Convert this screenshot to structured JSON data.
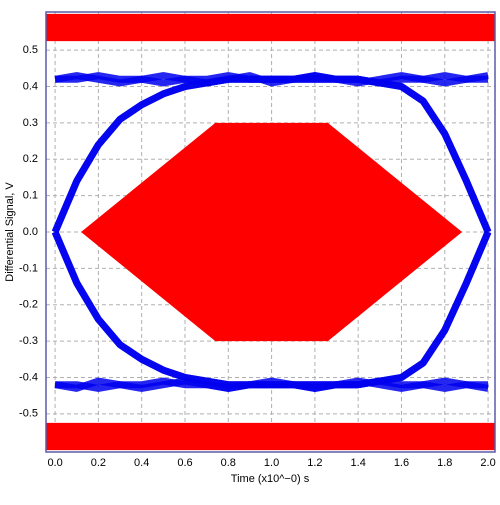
{
  "chart_data": {
    "type": "eye",
    "xlabel": "Time (x10^−0) s",
    "ylabel": "Differential Signal, V",
    "xlim": [
      -0.042,
      2.032
    ],
    "ylim": [
      -0.605,
      0.605
    ],
    "xticks": [
      {
        "value": 0,
        "label": "0.0"
      },
      0.2,
      0.4,
      0.6,
      0.8,
      {
        "value": 1,
        "label": "1.0"
      },
      1.2,
      1.4,
      1.6,
      1.8,
      {
        "value": 2,
        "label": "2.0"
      }
    ],
    "yticks": [
      0.5,
      0.4,
      0.3,
      0.2,
      0.1,
      {
        "value": 0,
        "label": "0.0"
      },
      -0.1,
      -0.2,
      -0.3,
      -0.4,
      -0.5
    ],
    "grid": true,
    "trace_color": "#0000ee",
    "mask_color": "#ff0000",
    "masks": [
      {
        "x": [
          -0.042,
          2.032,
          2.032,
          -0.042
        ],
        "y": [
          0.6,
          0.6,
          0.525,
          0.525
        ]
      },
      {
        "x": [
          0.12,
          0.74,
          1.26,
          1.88,
          1.26,
          0.74
        ],
        "y": [
          0,
          0.3,
          0.3,
          0,
          -0.3,
          -0.3
        ]
      },
      {
        "x": [
          -0.042,
          2.032,
          2.032,
          -0.042
        ],
        "y": [
          -0.525,
          -0.525,
          -0.6,
          -0.6
        ]
      }
    ],
    "x": [
      0,
      0.1,
      0.2,
      0.3,
      0.4,
      0.5,
      0.6,
      0.7,
      0.8,
      0.9,
      1.0,
      1.1,
      1.2,
      1.3,
      1.4,
      1.5,
      1.6,
      1.7,
      1.8,
      1.9,
      2.0
    ],
    "series": [
      {
        "values": [
          0.42,
          0.43,
          0.42,
          0.41,
          0.42,
          0.43,
          0.42,
          0.41,
          0.42,
          0.43,
          0.41,
          0.42,
          0.43,
          0.42,
          0.41,
          0.42,
          0.43,
          0.42,
          0.41,
          0.42,
          0.43
        ]
      },
      {
        "values": [
          -0.42,
          -0.43,
          -0.41,
          -0.42,
          -0.43,
          -0.42,
          -0.41,
          -0.42,
          -0.43,
          -0.42,
          -0.41,
          -0.42,
          -0.43,
          -0.42,
          -0.41,
          -0.42,
          -0.43,
          -0.42,
          -0.41,
          -0.42,
          -0.43
        ]
      },
      {
        "values": [
          0.0,
          0.14,
          0.24,
          0.31,
          0.35,
          0.38,
          0.4,
          0.41,
          0.42,
          0.42,
          0.42,
          0.42,
          0.43,
          0.42,
          0.42,
          0.41,
          0.42,
          0.42,
          0.43,
          0.42,
          0.42
        ]
      },
      {
        "values": [
          0.0,
          0.14,
          0.24,
          0.31,
          0.35,
          0.38,
          0.4,
          0.41,
          0.42,
          0.42,
          0.42,
          0.42,
          0.42,
          0.42,
          0.42,
          0.41,
          0.4,
          0.36,
          0.27,
          0.14,
          0.0
        ]
      },
      {
        "values": [
          0.42,
          0.42,
          0.43,
          0.42,
          0.42,
          0.41,
          0.42,
          0.42,
          0.43,
          0.42,
          0.42,
          0.42,
          0.42,
          0.42,
          0.42,
          0.41,
          0.4,
          0.36,
          0.27,
          0.14,
          0.0
        ]
      },
      {
        "values": [
          0.0,
          -0.14,
          -0.24,
          -0.31,
          -0.35,
          -0.38,
          -0.4,
          -0.41,
          -0.42,
          -0.42,
          -0.42,
          -0.42,
          -0.43,
          -0.42,
          -0.42,
          -0.41,
          -0.42,
          -0.42,
          -0.43,
          -0.42,
          -0.42
        ]
      },
      {
        "values": [
          0.0,
          -0.14,
          -0.24,
          -0.31,
          -0.35,
          -0.38,
          -0.4,
          -0.41,
          -0.42,
          -0.42,
          -0.42,
          -0.42,
          -0.42,
          -0.42,
          -0.42,
          -0.41,
          -0.4,
          -0.36,
          -0.27,
          -0.14,
          0.0
        ]
      },
      {
        "values": [
          -0.42,
          -0.42,
          -0.43,
          -0.42,
          -0.42,
          -0.41,
          -0.42,
          -0.42,
          -0.43,
          -0.42,
          -0.42,
          -0.42,
          -0.42,
          -0.42,
          -0.42,
          -0.41,
          -0.4,
          -0.36,
          -0.27,
          -0.14,
          0.0
        ]
      }
    ]
  }
}
